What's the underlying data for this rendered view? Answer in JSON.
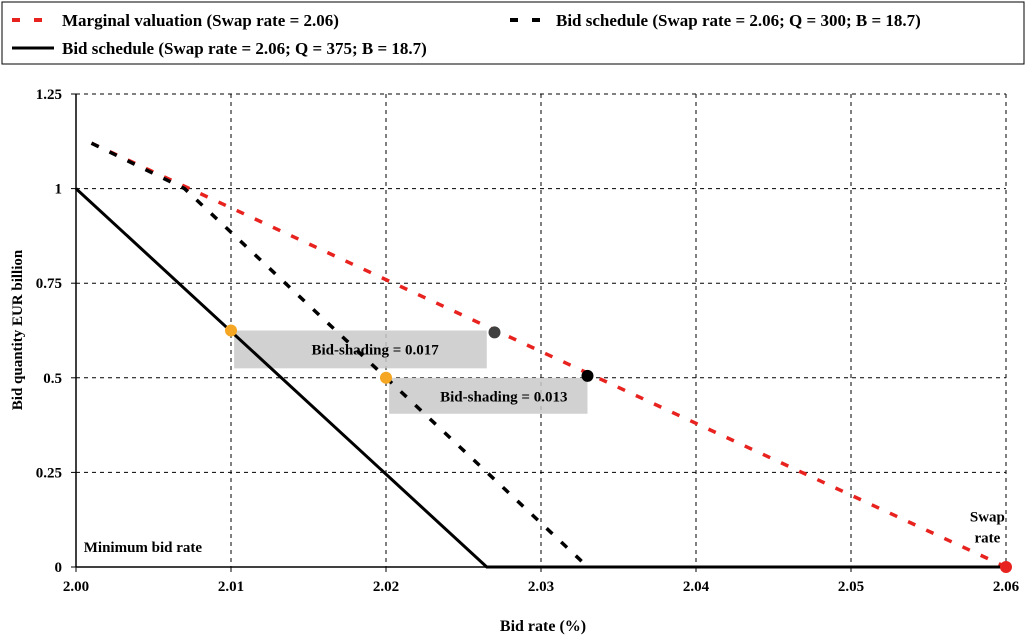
{
  "chart_data": {
    "type": "line",
    "xlabel": "Bid rate (%)",
    "ylabel": "Bid quantity EUR billion",
    "xlim": [
      2.0,
      2.06
    ],
    "ylim": [
      0,
      1.25
    ],
    "x_ticks": [
      2.0,
      2.01,
      2.02,
      2.03,
      2.04,
      2.05,
      2.06
    ],
    "x_tick_labels": [
      "2.00",
      "2.01",
      "2.02",
      "2.03",
      "2.04",
      "2.05",
      "2.06"
    ],
    "y_ticks": [
      0,
      0.25,
      0.5,
      0.75,
      1,
      1.25
    ],
    "y_tick_labels": [
      "0",
      "0.25",
      "0.5",
      "0.75",
      "1",
      "1.25"
    ],
    "grid": true,
    "legend_position": "top",
    "series": [
      {
        "name": "Marginal valuation (Swap rate = 2.06)",
        "style": "dashed",
        "color": "#e8231f",
        "x": [
          2.001,
          2.06
        ],
        "y": [
          1.12,
          0.0
        ]
      },
      {
        "name": "Bid schedule (Swap rate = 2.06; Q = 300; B = 18.7)",
        "style": "dashed",
        "color": "#000000",
        "x": [
          2.001,
          2.007,
          2.0325,
          2.033
        ],
        "y": [
          1.12,
          1.0,
          0.02,
          0.0
        ]
      },
      {
        "name": "Bid schedule (Swap rate = 2.06; Q = 375; B = 18.7)",
        "style": "solid",
        "color": "#000000",
        "x": [
          2.0,
          2.0265,
          2.06
        ],
        "y": [
          1.0,
          0.0,
          0.0
        ]
      }
    ],
    "points": [
      {
        "x": 2.01,
        "y": 0.625,
        "color": "#f5a623"
      },
      {
        "x": 2.027,
        "y": 0.62,
        "color": "#404040"
      },
      {
        "x": 2.02,
        "y": 0.5,
        "color": "#f5a623"
      },
      {
        "x": 2.033,
        "y": 0.505,
        "color": "#000000"
      },
      {
        "x": 2.06,
        "y": 0.0,
        "color": "#e8231f"
      }
    ],
    "shading_boxes": [
      {
        "x0": 2.0102,
        "x1": 2.0265,
        "y0": 0.525,
        "y1": 0.625,
        "label": "Bid-shading = 0.017",
        "label_x": 2.0193,
        "label_y": 0.575
      },
      {
        "x0": 2.0202,
        "x1": 2.033,
        "y0": 0.405,
        "y1": 0.5,
        "label": "Bid-shading = 0.013",
        "label_x": 2.0276,
        "label_y": 0.45
      }
    ],
    "annotations": [
      {
        "text": "Minimum bid rate",
        "x": 2.0005,
        "y": 0.04
      },
      {
        "text": "Swap",
        "x": 2.0588,
        "y": 0.12
      },
      {
        "text": "rate",
        "x": 2.0588,
        "y": 0.065
      }
    ]
  }
}
